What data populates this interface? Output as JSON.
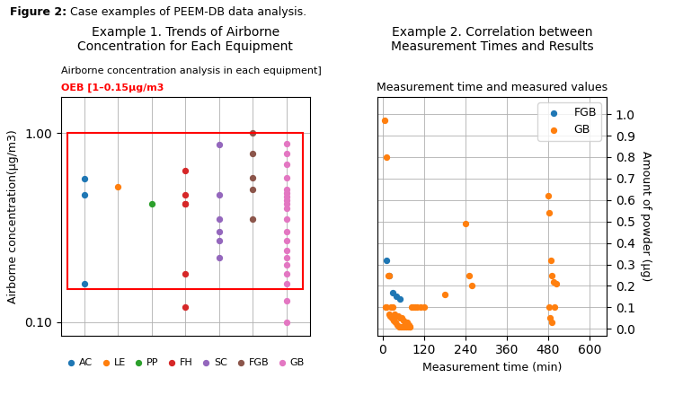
{
  "caption": [
    "Figure 2:",
    " Case examples of PEEM-DB data analysis."
  ],
  "chart_data": [
    {
      "type": "scatter",
      "title": "Example 1. Trends of Airborne\nConcentration for Each Equipment",
      "subtitle": [
        "Airborne concentration analysis in each equipment]",
        "OEB [1–0.15μg/m3"
      ],
      "y_label": "Airborne concentration(μg/m3)",
      "log": "y",
      "ylim": [
        0.085,
        1.55
      ],
      "yticks": [
        {
          "value": 0.1,
          "label": "0.10"
        },
        {
          "value": 1.0,
          "label": "1.00"
        }
      ],
      "grid": true,
      "legend": "lower center",
      "tick_labels": "y",
      "oeb_range": [
        0.15,
        1.0
      ],
      "series": [
        {
          "name": "AC",
          "values": [
            0.16,
            0.57,
            0.47
          ]
        },
        {
          "name": "LE",
          "values": [
            0.52
          ]
        },
        {
          "name": "PP",
          "values": [
            0.42
          ]
        },
        {
          "name": "FH",
          "values": [
            0.63,
            0.47,
            0.42,
            0.42,
            0.18,
            0.12
          ]
        },
        {
          "name": "SC",
          "values": [
            0.87,
            0.47,
            0.35,
            0.3,
            0.27,
            0.22
          ]
        },
        {
          "name": "FGB",
          "values": [
            1.0,
            0.78,
            0.58,
            0.5,
            0.35
          ]
        },
        {
          "name": "GB",
          "values": [
            0.88,
            0.78,
            0.68,
            0.58,
            0.5,
            0.48,
            0.46,
            0.44,
            0.42,
            0.4,
            0.35,
            0.3,
            0.27,
            0.24,
            0.22,
            0.2,
            0.18,
            0.16,
            0.13,
            0.1
          ]
        }
      ]
    },
    {
      "type": "scatter",
      "title": "Example 2. Correlation between\nMeasurement Times and Results",
      "subtitle": "Measurement time and measured values",
      "x_label": "Measurement time (min)",
      "y_label": "Amount of powder (μg)",
      "xlim": [
        -15,
        650
      ],
      "ylim": [
        -0.03,
        1.08
      ],
      "xticks": [
        0,
        120,
        240,
        360,
        480,
        600
      ],
      "yticks": [
        0.0,
        0.1,
        0.2,
        0.3,
        0.4,
        0.5,
        0.6,
        0.7,
        0.8,
        0.9,
        1.0
      ],
      "grid": true,
      "legend": "upper right",
      "series": [
        {
          "name": "FGB",
          "x": [
            10,
            20,
            30,
            40,
            50
          ],
          "values": [
            0.32,
            0.25,
            0.17,
            0.15,
            0.14
          ]
        },
        {
          "name": "GB",
          "x": [
            5,
            8,
            10,
            12,
            15,
            18,
            20,
            22,
            25,
            28,
            30,
            33,
            35,
            38,
            40,
            43,
            45,
            48,
            50,
            53,
            55,
            58,
            60,
            63,
            65,
            68,
            70,
            73,
            75,
            78,
            80,
            85,
            90,
            95,
            100,
            110,
            120,
            180,
            240,
            250,
            260,
            480,
            482,
            484,
            486,
            488,
            490,
            492,
            495,
            500,
            505
          ],
          "values": [
            0.97,
            0.1,
            0.8,
            0.1,
            0.25,
            0.07,
            0.25,
            0.06,
            0.1,
            0.05,
            0.1,
            0.04,
            0.07,
            0.03,
            0.06,
            0.02,
            0.06,
            0.01,
            0.05,
            0.01,
            0.05,
            0.01,
            0.04,
            0.01,
            0.03,
            0.01,
            0.03,
            0.01,
            0.02,
            0.01,
            0.01,
            0.1,
            0.1,
            0.1,
            0.1,
            0.1,
            0.1,
            0.16,
            0.49,
            0.25,
            0.2,
            0.62,
            0.1,
            0.54,
            0.05,
            0.32,
            0.25,
            0.03,
            0.22,
            0.1,
            0.21
          ]
        }
      ]
    }
  ]
}
